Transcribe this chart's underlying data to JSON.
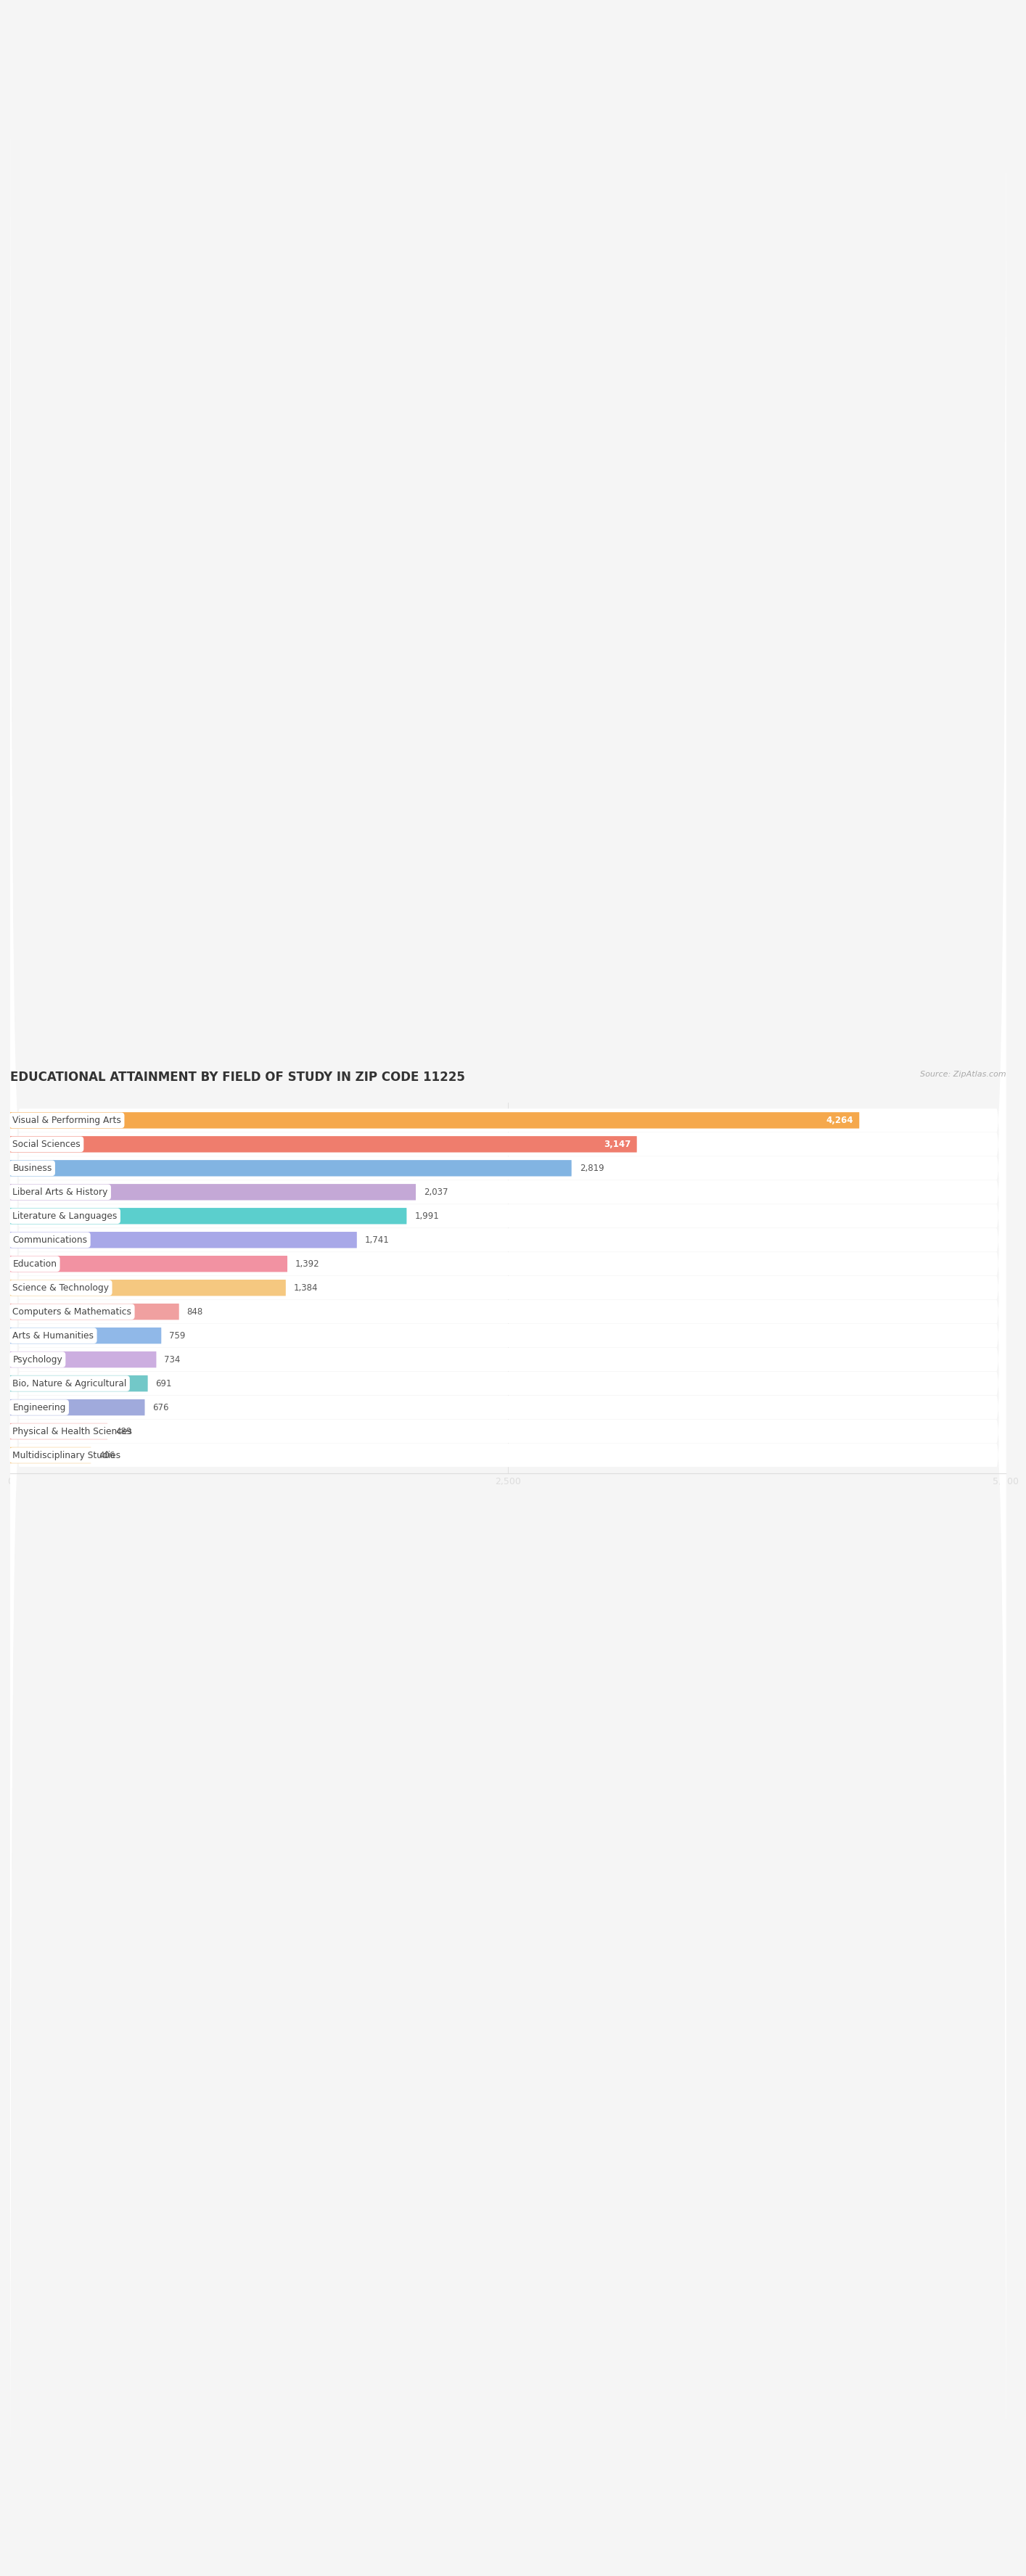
{
  "title": "EDUCATIONAL ATTAINMENT BY FIELD OF STUDY IN ZIP CODE 11225",
  "source": "Source: ZipAtlas.com",
  "categories": [
    "Visual & Performing Arts",
    "Social Sciences",
    "Business",
    "Liberal Arts & History",
    "Literature & Languages",
    "Communications",
    "Education",
    "Science & Technology",
    "Computers & Mathematics",
    "Arts & Humanities",
    "Psychology",
    "Bio, Nature & Agricultural",
    "Engineering",
    "Physical & Health Sciences",
    "Multidisciplinary Studies"
  ],
  "values": [
    4264,
    3147,
    2819,
    2037,
    1991,
    1741,
    1392,
    1384,
    848,
    759,
    734,
    691,
    676,
    489,
    406
  ],
  "bar_colors": [
    "#F5A84C",
    "#EF7D6D",
    "#82B4E2",
    "#C4A8D6",
    "#5BCFCD",
    "#A8A8E8",
    "#F292A2",
    "#F5C880",
    "#F0A0A0",
    "#90B8E8",
    "#CCAEE0",
    "#72C8C8",
    "#A0AADC",
    "#F09898",
    "#F5C070"
  ],
  "dot_colors": [
    "#F5A84C",
    "#EF7D6D",
    "#82B4E2",
    "#C4A8D6",
    "#5BCFCD",
    "#A8A8E8",
    "#F292A2",
    "#F5C880",
    "#F0A0A0",
    "#90B8E8",
    "#CCAEE0",
    "#72C8C8",
    "#A0AADC",
    "#F09898",
    "#F5C070"
  ],
  "xlim": [
    0,
    5000
  ],
  "xticks": [
    0,
    2500,
    5000
  ],
  "bg_color": "#f5f5f5",
  "row_bg_color": "#ffffff",
  "label_text_color": "#555555",
  "value_inside_color": "#ffffff",
  "value_outside_color": "#666666",
  "inside_threshold": 3147
}
